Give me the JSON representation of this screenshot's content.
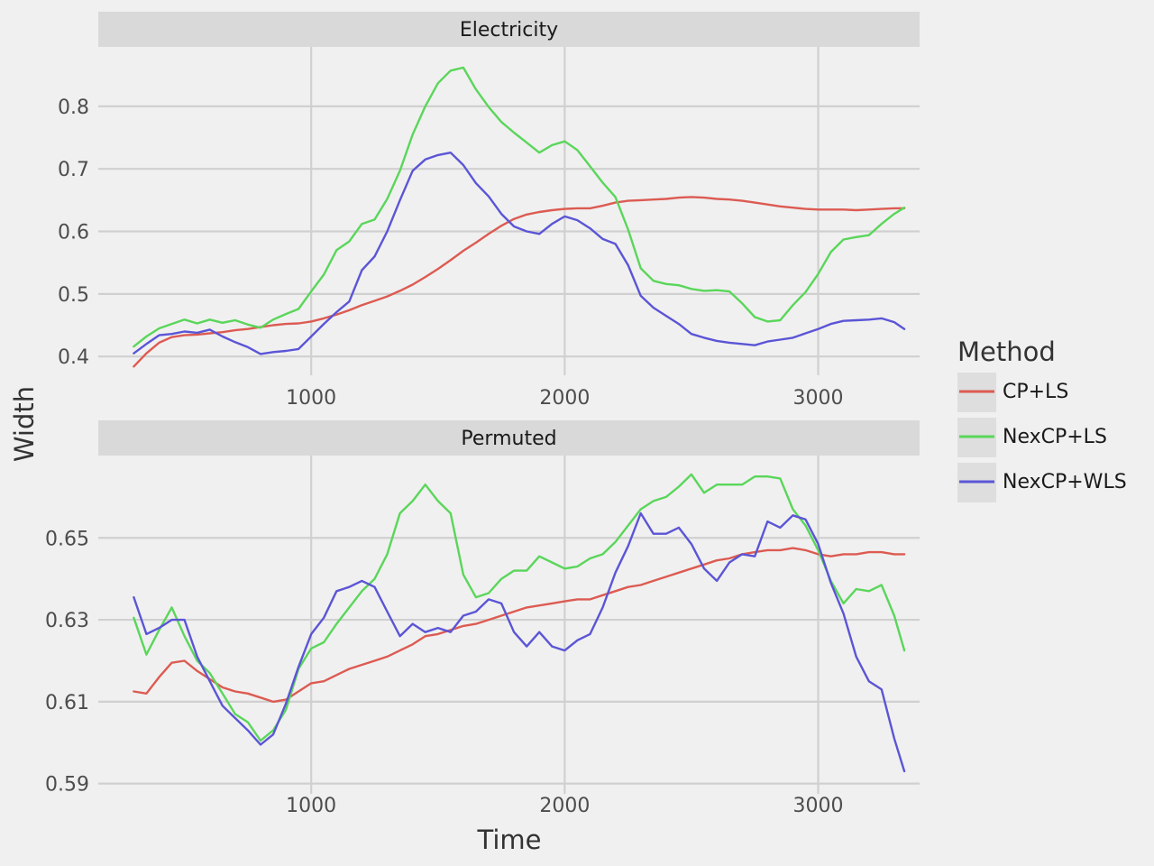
{
  "chart_data": {
    "type": "line",
    "ylabel": "Width",
    "xlabel": "Time",
    "legend": {
      "title": "Method",
      "placement": "right",
      "entries": [
        {
          "name": "CP+LS",
          "color": "#dc5b52"
        },
        {
          "name": "NexCP+LS",
          "color": "#5ad65a"
        },
        {
          "name": "NexCP+WLS",
          "color": "#5b55d6"
        }
      ]
    },
    "grid": true,
    "facets": [
      {
        "title": "Electricity",
        "xlim": [
          160,
          3400
        ],
        "ylim": [
          0.37,
          0.895
        ],
        "xticks": [
          "1000",
          "2000",
          "3000"
        ],
        "yticks": [
          "0.4",
          "0.5",
          "0.6",
          "0.7",
          "0.8"
        ],
        "x": [
          300,
          350,
          400,
          450,
          500,
          550,
          600,
          650,
          700,
          750,
          800,
          850,
          900,
          950,
          1000,
          1050,
          1100,
          1150,
          1200,
          1250,
          1300,
          1350,
          1400,
          1450,
          1500,
          1550,
          1600,
          1650,
          1700,
          1750,
          1800,
          1850,
          1900,
          1950,
          2000,
          2050,
          2100,
          2150,
          2200,
          2250,
          2300,
          2350,
          2400,
          2450,
          2500,
          2550,
          2600,
          2650,
          2700,
          2750,
          2800,
          2850,
          2900,
          2950,
          3000,
          3050,
          3100,
          3150,
          3200,
          3250,
          3300,
          3340
        ],
        "series": [
          {
            "name": "CP+LS",
            "values": [
              0.384,
              0.405,
              0.422,
              0.431,
              0.434,
              0.435,
              0.437,
              0.439,
              0.442,
              0.444,
              0.447,
              0.45,
              0.452,
              0.453,
              0.456,
              0.461,
              0.467,
              0.474,
              0.482,
              0.489,
              0.496,
              0.505,
              0.515,
              0.527,
              0.54,
              0.554,
              0.569,
              0.582,
              0.596,
              0.609,
              0.62,
              0.627,
              0.631,
              0.634,
              0.636,
              0.637,
              0.637,
              0.641,
              0.646,
              0.649,
              0.65,
              0.651,
              0.652,
              0.654,
              0.655,
              0.654,
              0.652,
              0.651,
              0.649,
              0.646,
              0.643,
              0.64,
              0.638,
              0.636,
              0.635,
              0.635,
              0.635,
              0.634,
              0.635,
              0.636,
              0.637,
              0.637
            ]
          },
          {
            "name": "NexCP+LS",
            "values": [
              0.416,
              0.432,
              0.445,
              0.452,
              0.459,
              0.453,
              0.459,
              0.454,
              0.458,
              0.451,
              0.446,
              0.459,
              0.468,
              0.476,
              0.504,
              0.531,
              0.57,
              0.584,
              0.612,
              0.619,
              0.652,
              0.697,
              0.755,
              0.8,
              0.837,
              0.857,
              0.862,
              0.827,
              0.799,
              0.775,
              0.758,
              0.742,
              0.726,
              0.738,
              0.744,
              0.73,
              0.704,
              0.678,
              0.655,
              0.603,
              0.541,
              0.521,
              0.516,
              0.514,
              0.508,
              0.505,
              0.506,
              0.504,
              0.485,
              0.463,
              0.456,
              0.458,
              0.482,
              0.503,
              0.532,
              0.567,
              0.587,
              0.591,
              0.594,
              0.612,
              0.628,
              0.638
            ]
          },
          {
            "name": "NexCP+WLS",
            "values": [
              0.405,
              0.42,
              0.434,
              0.436,
              0.44,
              0.438,
              0.443,
              0.432,
              0.423,
              0.415,
              0.404,
              0.407,
              0.409,
              0.412,
              0.432,
              0.452,
              0.471,
              0.488,
              0.538,
              0.56,
              0.6,
              0.65,
              0.697,
              0.715,
              0.722,
              0.726,
              0.706,
              0.677,
              0.656,
              0.628,
              0.608,
              0.6,
              0.596,
              0.612,
              0.624,
              0.618,
              0.605,
              0.588,
              0.58,
              0.546,
              0.497,
              0.478,
              0.465,
              0.452,
              0.436,
              0.43,
              0.425,
              0.422,
              0.42,
              0.418,
              0.424,
              0.427,
              0.43,
              0.437,
              0.444,
              0.452,
              0.457,
              0.458,
              0.459,
              0.461,
              0.455,
              0.444
            ]
          }
        ]
      },
      {
        "title": "Permuted",
        "xlim": [
          160,
          3400
        ],
        "ylim": [
          0.5875,
          0.6701
        ],
        "xticks": [
          "1000",
          "2000",
          "3000"
        ],
        "yticks": [
          "0.59",
          "0.61",
          "0.63",
          "0.65"
        ],
        "x": [
          300,
          350,
          400,
          450,
          500,
          550,
          600,
          650,
          700,
          750,
          800,
          850,
          900,
          950,
          1000,
          1050,
          1100,
          1150,
          1200,
          1250,
          1300,
          1350,
          1400,
          1450,
          1500,
          1550,
          1600,
          1650,
          1700,
          1750,
          1800,
          1850,
          1900,
          1950,
          2000,
          2050,
          2100,
          2150,
          2200,
          2250,
          2300,
          2350,
          2400,
          2450,
          2500,
          2550,
          2600,
          2650,
          2700,
          2750,
          2800,
          2850,
          2900,
          2950,
          3000,
          3050,
          3100,
          3150,
          3200,
          3250,
          3300,
          3340
        ],
        "series": [
          {
            "name": "CP+LS",
            "values": [
              0.6125,
              0.612,
              0.616,
              0.6195,
              0.62,
              0.6175,
              0.6155,
              0.6135,
              0.6125,
              0.612,
              0.611,
              0.61,
              0.6105,
              0.6125,
              0.6145,
              0.615,
              0.6165,
              0.618,
              0.619,
              0.62,
              0.621,
              0.6225,
              0.624,
              0.626,
              0.6265,
              0.6275,
              0.6285,
              0.629,
              0.63,
              0.631,
              0.632,
              0.633,
              0.6335,
              0.634,
              0.6345,
              0.635,
              0.635,
              0.636,
              0.637,
              0.638,
              0.6385,
              0.6395,
              0.6405,
              0.6415,
              0.6425,
              0.6435,
              0.6445,
              0.645,
              0.646,
              0.6465,
              0.647,
              0.647,
              0.6475,
              0.647,
              0.646,
              0.6455,
              0.646,
              0.646,
              0.6465,
              0.6465,
              0.646,
              0.646
            ]
          },
          {
            "name": "NexCP+LS",
            "values": [
              0.6305,
              0.6215,
              0.6275,
              0.633,
              0.626,
              0.62,
              0.617,
              0.612,
              0.607,
              0.605,
              0.6005,
              0.603,
              0.608,
              0.618,
              0.623,
              0.6245,
              0.629,
              0.633,
              0.637,
              0.64,
              0.646,
              0.656,
              0.659,
              0.663,
              0.659,
              0.656,
              0.641,
              0.6355,
              0.6365,
              0.64,
              0.642,
              0.642,
              0.6455,
              0.644,
              0.6425,
              0.643,
              0.645,
              0.646,
              0.649,
              0.653,
              0.657,
              0.659,
              0.66,
              0.6625,
              0.6655,
              0.661,
              0.663,
              0.663,
              0.663,
              0.665,
              0.665,
              0.6645,
              0.657,
              0.653,
              0.647,
              0.6395,
              0.634,
              0.6375,
              0.637,
              0.6385,
              0.631,
              0.6225
            ]
          },
          {
            "name": "NexCP+WLS",
            "values": [
              0.6355,
              0.6265,
              0.628,
              0.63,
              0.63,
              0.621,
              0.615,
              0.609,
              0.606,
              0.603,
              0.5995,
              0.602,
              0.6095,
              0.6185,
              0.6265,
              0.6305,
              0.637,
              0.638,
              0.6395,
              0.638,
              0.632,
              0.626,
              0.629,
              0.627,
              0.628,
              0.627,
              0.631,
              0.632,
              0.635,
              0.634,
              0.627,
              0.6235,
              0.627,
              0.6235,
              0.6225,
              0.625,
              0.6265,
              0.633,
              0.6415,
              0.648,
              0.656,
              0.651,
              0.651,
              0.6525,
              0.6485,
              0.6425,
              0.6395,
              0.644,
              0.646,
              0.6455,
              0.654,
              0.6525,
              0.6555,
              0.6545,
              0.6485,
              0.639,
              0.6315,
              0.621,
              0.615,
              0.613,
              0.601,
              0.593
            ]
          }
        ]
      }
    ]
  }
}
